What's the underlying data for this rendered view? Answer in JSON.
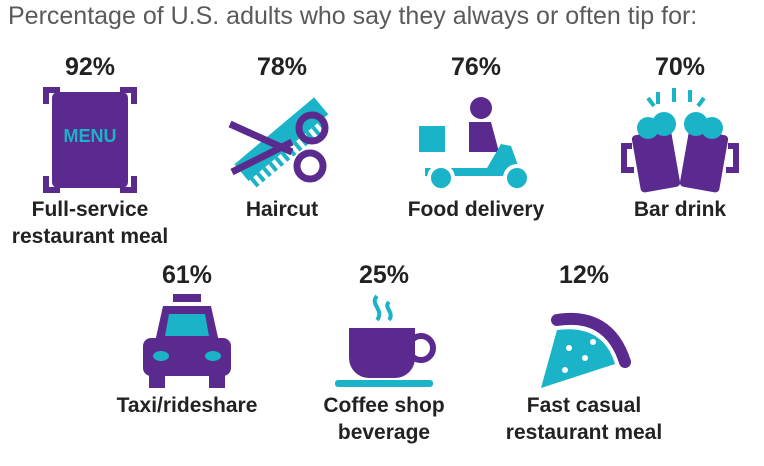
{
  "title": "Percentage of U.S. adults who say they always or often tip for:",
  "items": [
    {
      "percent": "92%",
      "label_lines": [
        "Full-service",
        "restaurant meal"
      ],
      "icon_text": "MENU"
    },
    {
      "percent": "78%",
      "label_lines": [
        "Haircut"
      ]
    },
    {
      "percent": "76%",
      "label_lines": [
        "Food delivery"
      ]
    },
    {
      "percent": "70%",
      "label_lines": [
        "Bar drink"
      ]
    },
    {
      "percent": "61%",
      "label_lines": [
        "Taxi/rideshare"
      ]
    },
    {
      "percent": "25%",
      "label_lines": [
        "Coffee shop",
        "beverage"
      ]
    },
    {
      "percent": "12%",
      "label_lines": [
        "Fast casual",
        "restaurant meal"
      ]
    }
  ]
}
